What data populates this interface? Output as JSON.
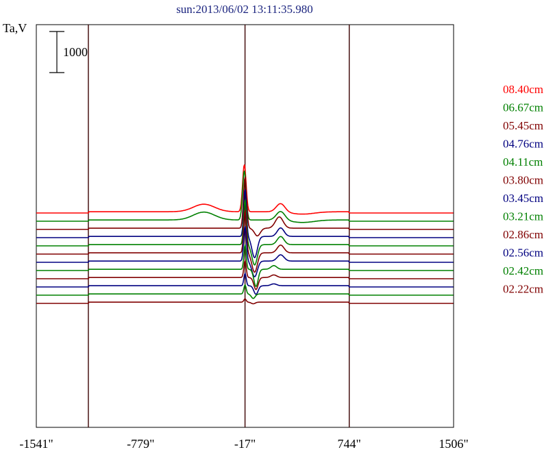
{
  "chart_data": {
    "type": "line",
    "title": "sun:2013/06/02 13:11:35.980",
    "ylabel": "Ta,V",
    "xlabel": "",
    "scale_bar": {
      "label": "1000",
      "value": 1000
    },
    "x_ticks": [
      {
        "value": -1541,
        "label": "-1541\""
      },
      {
        "value": -779,
        "label": "-779\""
      },
      {
        "value": -17,
        "label": "-17\""
      },
      {
        "value": 744,
        "label": "744\""
      },
      {
        "value": 1506,
        "label": "1506\""
      }
    ],
    "xlim": [
      -1541,
      1506
    ],
    "vertical_lines": [
      -1161,
      -17,
      744
    ],
    "grid": false,
    "legend_position": "right",
    "series": [
      {
        "name": "08.40cm",
        "color": "#ff0000",
        "base": 1150,
        "shape": "a",
        "peak": 1150
      },
      {
        "name": "06.67cm",
        "color": "#008000",
        "base": 950,
        "shape": "a",
        "peak": 1200
      },
      {
        "name": "05.45cm",
        "color": "#800000",
        "base": 750,
        "shape": "b",
        "peak": 1250
      },
      {
        "name": "04.76cm",
        "color": "#000080",
        "base": 550,
        "shape": "c",
        "peak": 1150
      },
      {
        "name": "04.11cm",
        "color": "#008000",
        "base": 350,
        "shape": "c",
        "peak": 1100
      },
      {
        "name": "03.80cm",
        "color": "#800000",
        "base": 150,
        "shape": "c",
        "peak": 1050
      },
      {
        "name": "03.45cm",
        "color": "#000080",
        "base": -50,
        "shape": "c",
        "peak": 850
      },
      {
        "name": "03.21cm",
        "color": "#008000",
        "base": -250,
        "shape": "d",
        "peak": 600
      },
      {
        "name": "02.86cm",
        "color": "#800000",
        "base": -450,
        "shape": "d",
        "peak": 420
      },
      {
        "name": "02.56cm",
        "color": "#000080",
        "base": -650,
        "shape": "d",
        "peak": 300
      },
      {
        "name": "02.42cm",
        "color": "#008000",
        "base": -850,
        "shape": "e",
        "peak": 220
      },
      {
        "name": "02.22cm",
        "color": "#800000",
        "base": -1050,
        "shape": "e",
        "peak": 80
      }
    ]
  }
}
